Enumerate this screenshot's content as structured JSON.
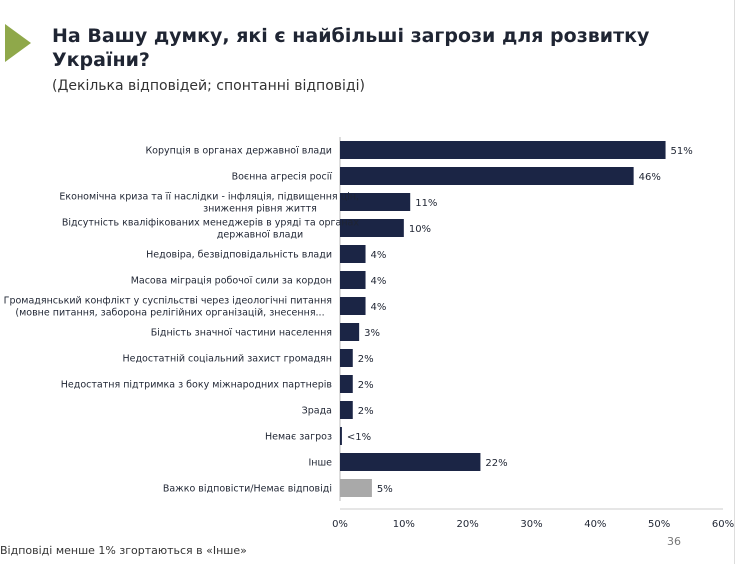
{
  "header": {
    "title": "На Вашу думку, які є найбільші загрози для розвитку України?",
    "subtitle": "(Декілька відповідей; спонтанні відповіді)"
  },
  "footer": {
    "note": "Відповіді менше 1% згортаються в «Інше»",
    "page_number": "36"
  },
  "chart_data": {
    "type": "bar",
    "orientation": "horizontal",
    "title": "На Вашу думку, які є найбільші загрози для розвитку України?",
    "categories": [
      [
        "Корупція в органах державної влади"
      ],
      [
        "Воєнна агресія росії"
      ],
      [
        "Економічна криза та її наслідки - інфляція, підвищення цін,",
        "зниження рівня життя"
      ],
      [
        "Відсутність кваліфікованих менеджерів в уряді та органах",
        "державної влади"
      ],
      [
        "Недовіра, безвідповідальність влади"
      ],
      [
        "Масова міграція робочої сили за кордон"
      ],
      [
        "Громадянський конфлікт у суспільстві через ідеологічні питання",
        "(мовне питання, заборона релігійних організацій, знесення..."
      ],
      [
        "Бідність значної частини населення"
      ],
      [
        "Недостатній соціальний захист громадян"
      ],
      [
        "Недостатня підтримка з боку міжнародних партнерів"
      ],
      [
        "Зрада"
      ],
      [
        "Немає загроз"
      ],
      [
        "Інше"
      ],
      [
        "Важко відповісти/Немає відповіді"
      ]
    ],
    "values": [
      51,
      46,
      11,
      10,
      4,
      4,
      4,
      3,
      2,
      2,
      2,
      0.3,
      22,
      5
    ],
    "value_labels": [
      "51%",
      "46%",
      "11%",
      "10%",
      "4%",
      "4%",
      "4%",
      "3%",
      "2%",
      "2%",
      "2%",
      "<1%",
      "22%",
      "5%"
    ],
    "colors": [
      "#1b2545",
      "#1b2545",
      "#1b2545",
      "#1b2545",
      "#1b2545",
      "#1b2545",
      "#1b2545",
      "#1b2545",
      "#1b2545",
      "#1b2545",
      "#1b2545",
      "#1b2545",
      "#1b2545",
      "#a9a9a9"
    ],
    "xlim": [
      0,
      60
    ],
    "x_ticks": [
      "0%",
      "10%",
      "20%",
      "30%",
      "40%",
      "50%",
      "60%"
    ],
    "grid": false
  }
}
